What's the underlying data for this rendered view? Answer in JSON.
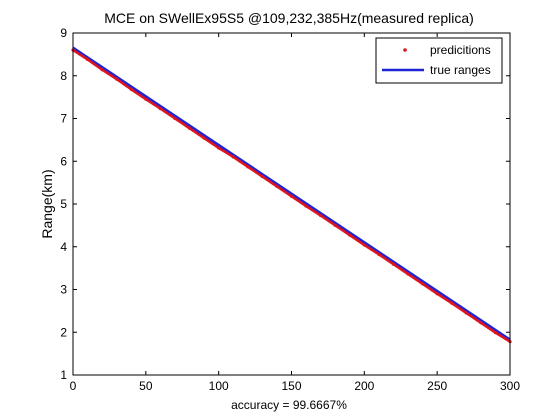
{
  "colors": {
    "predictions": "#e0141d",
    "true_ranges": "#1e24d6",
    "axes": "#000000",
    "background": "#ffffff"
  },
  "chart_data": {
    "type": "line",
    "title": "MCE on SWellEx95S5 @109,232,385Hz(measured replica)",
    "xlabel": "accuracy = 99.6667%",
    "ylabel": "Range(km)",
    "xlim": [
      0,
      300
    ],
    "ylim": [
      1,
      9
    ],
    "x_ticks": [
      "0",
      "50",
      "100",
      "150",
      "200",
      "250",
      "300"
    ],
    "y_ticks": [
      "1",
      "2",
      "3",
      "4",
      "5",
      "6",
      "7",
      "8",
      "9"
    ],
    "grid": false,
    "legend_position": "top-right",
    "series": [
      {
        "name": "predicitions",
        "style": "points",
        "x": [
          0,
          10,
          20,
          30,
          40,
          50,
          60,
          70,
          80,
          90,
          100,
          110,
          120,
          130,
          140,
          150,
          160,
          170,
          180,
          190,
          200,
          210,
          220,
          230,
          240,
          250,
          260,
          270,
          280,
          290,
          300
        ],
        "values": [
          8.62,
          8.4,
          8.16,
          7.94,
          7.7,
          7.47,
          7.25,
          7.02,
          6.79,
          6.56,
          6.33,
          6.12,
          5.89,
          5.66,
          5.43,
          5.2,
          4.97,
          4.75,
          4.52,
          4.29,
          4.06,
          3.84,
          3.61,
          3.38,
          3.15,
          2.92,
          2.7,
          2.47,
          2.24,
          2.01,
          1.8
        ]
      },
      {
        "name": "true ranges",
        "style": "line",
        "x": [
          0,
          300
        ],
        "values": [
          8.65,
          1.82
        ]
      }
    ]
  }
}
